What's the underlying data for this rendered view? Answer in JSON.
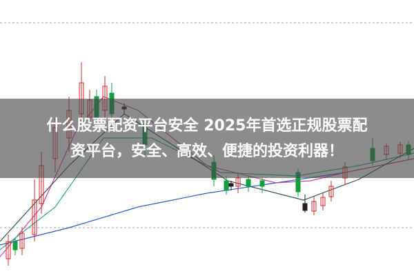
{
  "banner": {
    "lines": [
      "什么股票配资平台安全 2025年首选正规股票配",
      "资平台，安全、高效、便捷的投资利器！"
    ]
  }
}
